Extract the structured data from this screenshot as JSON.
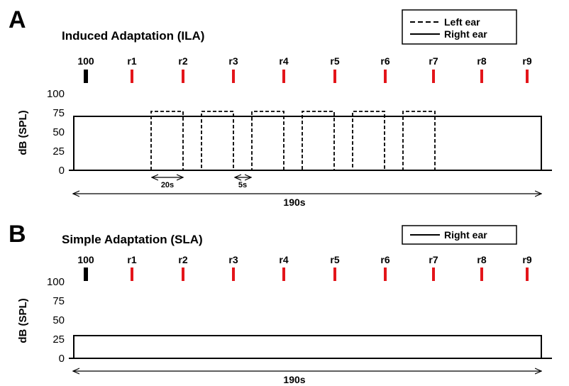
{
  "panelA": {
    "letter": "A",
    "title": "Induced Adaptation (ILA)",
    "legend": [
      "Left ear",
      "Right ear"
    ],
    "ylabel": "dB (SPL)",
    "yticks": [
      "100",
      "75",
      "50",
      "25",
      "0"
    ],
    "interval_short": "20s",
    "interval_gap": "5s",
    "duration": "190s"
  },
  "panelB": {
    "letter": "B",
    "title": "Simple Adaptation (SLA)",
    "legend": [
      "Right ear"
    ],
    "ylabel": "dB (SPL)",
    "yticks": [
      "100",
      "75",
      "50",
      "25",
      "0"
    ],
    "duration": "190s"
  },
  "markers": [
    "100",
    "r1",
    "r2",
    "r3",
    "r4",
    "r5",
    "r6",
    "r7",
    "r8",
    "r9"
  ],
  "colors": {
    "reference": "#000000",
    "rating": "#e3151a",
    "line": "#000000"
  },
  "chart_data": [
    {
      "type": "line",
      "title": "Induced Adaptation (ILA)",
      "ylabel": "dB (SPL)",
      "ylim": [
        0,
        100
      ],
      "yticks": [
        0,
        25,
        50,
        75,
        100
      ],
      "total_duration_s": 190,
      "series": [
        {
          "name": "Right ear",
          "style": "solid",
          "level_db": 70,
          "on_s": [
            0,
            190
          ]
        },
        {
          "name": "Left ear",
          "style": "dashed",
          "level_db": 75,
          "tone_s": 20,
          "gap_s": 5,
          "tones": 6,
          "start_s": 31
        }
      ],
      "markers": [
        "100",
        "r1",
        "r2",
        "r3",
        "r4",
        "r5",
        "r6",
        "r7",
        "r8",
        "r9"
      ]
    },
    {
      "type": "line",
      "title": "Simple Adaptation (SLA)",
      "ylabel": "dB (SPL)",
      "ylim": [
        0,
        100
      ],
      "yticks": [
        0,
        25,
        50,
        75,
        100
      ],
      "total_duration_s": 190,
      "series": [
        {
          "name": "Right ear",
          "style": "solid",
          "level_db": 30,
          "on_s": [
            0,
            190
          ]
        }
      ],
      "markers": [
        "100",
        "r1",
        "r2",
        "r3",
        "r4",
        "r5",
        "r6",
        "r7",
        "r8",
        "r9"
      ]
    }
  ]
}
